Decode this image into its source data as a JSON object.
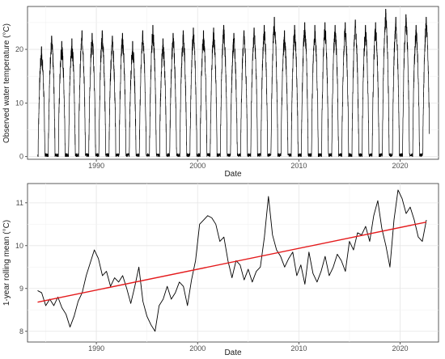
{
  "chart_data": [
    {
      "type": "line",
      "xlabel": "Date",
      "ylabel": "Observed water temperature (°C)",
      "xlim": [
        1983.2,
        2023.8
      ],
      "ylim": [
        -0.5,
        28
      ],
      "x_ticks": [
        "1990",
        "2000",
        "2010",
        "2020"
      ],
      "y_ticks": [
        "0",
        "10",
        "20"
      ],
      "grid": true,
      "line_color": "#000000",
      "series": [
        {
          "start_year": 1984.2,
          "end_year": 2022.9,
          "values_note_omitted": "",
          "annual_peaks": [
            {
              "year": 1984,
              "max": 20.5
            },
            {
              "year": 1985,
              "max": 22.5
            },
            {
              "year": 1986,
              "max": 21.5
            },
            {
              "year": 1987,
              "max": 22.0
            },
            {
              "year": 1988,
              "max": 23.5
            },
            {
              "year": 1989,
              "max": 23.0
            },
            {
              "year": 1990,
              "max": 23.5
            },
            {
              "year": 1991,
              "max": 22.5
            },
            {
              "year": 1992,
              "max": 23.0
            },
            {
              "year": 1993,
              "max": 21.5
            },
            {
              "year": 1994,
              "max": 23.5
            },
            {
              "year": 1995,
              "max": 24.5
            },
            {
              "year": 1996,
              "max": 22.0
            },
            {
              "year": 1997,
              "max": 23.0
            },
            {
              "year": 1998,
              "max": 23.5
            },
            {
              "year": 1999,
              "max": 24.0
            },
            {
              "year": 2000,
              "max": 23.5
            },
            {
              "year": 2001,
              "max": 24.0
            },
            {
              "year": 2002,
              "max": 24.5
            },
            {
              "year": 2003,
              "max": 23.0
            },
            {
              "year": 2004,
              "max": 23.5
            },
            {
              "year": 2005,
              "max": 24.0
            },
            {
              "year": 2006,
              "max": 24.5
            },
            {
              "year": 2007,
              "max": 26.0
            },
            {
              "year": 2008,
              "max": 23.5
            },
            {
              "year": 2009,
              "max": 24.5
            },
            {
              "year": 2010,
              "max": 25.0
            },
            {
              "year": 2011,
              "max": 24.5
            },
            {
              "year": 2012,
              "max": 25.0
            },
            {
              "year": 2013,
              "max": 24.5
            },
            {
              "year": 2014,
              "max": 25.0
            },
            {
              "year": 2015,
              "max": 25.5
            },
            {
              "year": 2016,
              "max": 24.5
            },
            {
              "year": 2017,
              "max": 25.0
            },
            {
              "year": 2018,
              "max": 27.5
            },
            {
              "year": 2019,
              "max": 26.0
            },
            {
              "year": 2020,
              "max": 26.5
            },
            {
              "year": 2021,
              "max": 24.5
            },
            {
              "year": 2022,
              "max": 26.0
            }
          ],
          "winter_min": 0.0
        }
      ]
    },
    {
      "type": "line",
      "xlabel": "Date",
      "ylabel": "1-year rolling mean (°C)",
      "xlim": [
        1983.2,
        2023.8
      ],
      "ylim": [
        7.75,
        11.45
      ],
      "x_ticks": [
        "1990",
        "2000",
        "2010",
        "2020"
      ],
      "y_ticks": [
        "8",
        "9",
        "10",
        "11"
      ],
      "grid": true,
      "series": [
        {
          "color": "#000000",
          "x": [
            1984.2,
            1984.6,
            1985.0,
            1985.4,
            1985.8,
            1986.2,
            1986.6,
            1987.0,
            1987.4,
            1987.8,
            1988.2,
            1988.6,
            1989.0,
            1989.4,
            1989.8,
            1990.2,
            1990.6,
            1991.0,
            1991.4,
            1991.8,
            1992.2,
            1992.6,
            1993.0,
            1993.4,
            1993.8,
            1994.2,
            1994.6,
            1995.0,
            1995.4,
            1995.8,
            1996.2,
            1996.6,
            1997.0,
            1997.4,
            1997.8,
            1998.2,
            1998.6,
            1999.0,
            1999.4,
            1999.8,
            2000.2,
            2000.6,
            2001.0,
            2001.4,
            2001.8,
            2002.2,
            2002.6,
            2003.0,
            2003.4,
            2003.8,
            2004.2,
            2004.6,
            2005.0,
            2005.4,
            2005.8,
            2006.2,
            2006.6,
            2007.0,
            2007.4,
            2007.8,
            2008.2,
            2008.6,
            2009.0,
            2009.4,
            2009.8,
            2010.2,
            2010.6,
            2011.0,
            2011.4,
            2011.8,
            2012.2,
            2012.6,
            2013.0,
            2013.4,
            2013.8,
            2014.2,
            2014.6,
            2015.0,
            2015.4,
            2015.8,
            2016.2,
            2016.6,
            2017.0,
            2017.4,
            2017.8,
            2018.2,
            2018.6,
            2019.0,
            2019.4,
            2019.8,
            2020.2,
            2020.6,
            2021.0,
            2021.4,
            2021.8,
            2022.2,
            2022.6
          ],
          "y": [
            8.95,
            8.9,
            8.6,
            8.75,
            8.6,
            8.8,
            8.55,
            8.4,
            8.1,
            8.35,
            8.7,
            8.9,
            9.3,
            9.6,
            9.9,
            9.7,
            9.3,
            9.4,
            9.05,
            9.25,
            9.15,
            9.3,
            9.0,
            8.65,
            9.05,
            9.5,
            8.7,
            8.35,
            8.15,
            8.0,
            8.6,
            8.75,
            9.05,
            8.75,
            8.9,
            9.15,
            9.05,
            8.6,
            9.2,
            9.65,
            10.5,
            10.6,
            10.7,
            10.65,
            10.5,
            10.1,
            10.2,
            9.65,
            9.25,
            9.65,
            9.55,
            9.2,
            9.45,
            9.15,
            9.4,
            9.5,
            10.2,
            11.15,
            10.25,
            9.9,
            9.75,
            9.5,
            9.7,
            9.85,
            9.3,
            9.55,
            9.1,
            9.85,
            9.35,
            9.15,
            9.4,
            9.75,
            9.3,
            9.5,
            9.8,
            9.65,
            9.4,
            10.1,
            9.9,
            10.3,
            10.25,
            10.45,
            10.1,
            10.7,
            11.05,
            10.4,
            10.0,
            9.5,
            10.6,
            11.3,
            11.1,
            10.75,
            10.9,
            10.6,
            10.2,
            10.1,
            10.6
          ],
          "name": ""
        },
        {
          "color": "#e41a1c",
          "x": [
            1984.2,
            2022.6
          ],
          "y": [
            8.68,
            10.55
          ],
          "name": ""
        }
      ]
    }
  ]
}
